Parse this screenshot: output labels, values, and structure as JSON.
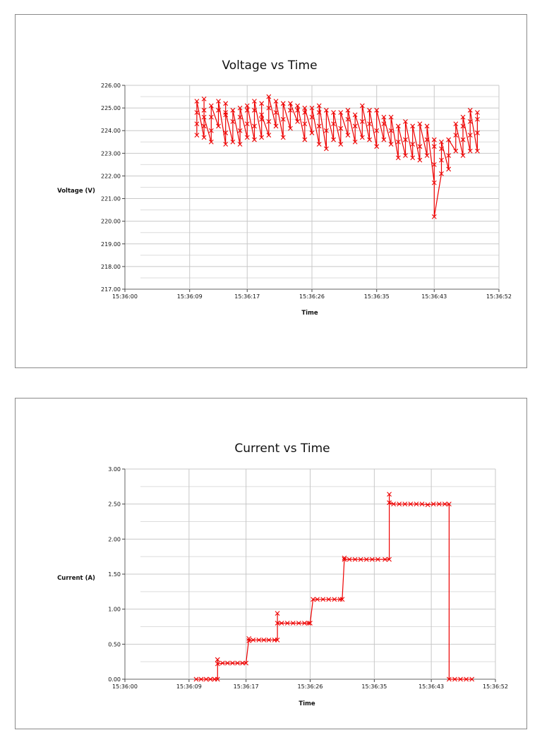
{
  "chart_data": [
    {
      "type": "line",
      "title": "Voltage vs Time",
      "xlabel": "Time",
      "ylabel": "Voltage (V)",
      "ylim": [
        217,
        226
      ],
      "xlim": [
        "15:36:00",
        "15:36:52"
      ],
      "x_ticks": [
        "15:36:00",
        "15:36:09",
        "15:36:17",
        "15:36:26",
        "15:36:35",
        "15:36:43",
        "15:36:52"
      ],
      "y_ticks": [
        "217.00",
        "218.00",
        "219.00",
        "220.00",
        "221.00",
        "222.00",
        "223.00",
        "224.00",
        "225.00",
        "226.00"
      ],
      "grid": true,
      "marker": "x",
      "color": "#ee0000",
      "series": [
        {
          "values": [
            [
              "15:36:10",
              223.8
            ],
            [
              "15:36:10",
              224.3
            ],
            [
              "15:36:10",
              224.8
            ],
            [
              "15:36:10",
              225.3
            ],
            [
              "15:36:11",
              223.7
            ],
            [
              "15:36:11",
              224.2
            ],
            [
              "15:36:11",
              224.9
            ],
            [
              "15:36:11",
              225.4
            ],
            [
              "15:36:11",
              224.6
            ],
            [
              "15:36:12",
              223.5
            ],
            [
              "15:36:12",
              224.0
            ],
            [
              "15:36:12",
              224.6
            ],
            [
              "15:36:12",
              225.1
            ],
            [
              "15:36:13",
              224.2
            ],
            [
              "15:36:13",
              224.9
            ],
            [
              "15:36:13",
              225.3
            ],
            [
              "15:36:14",
              223.4
            ],
            [
              "15:36:14",
              223.9
            ],
            [
              "15:36:14",
              224.7
            ],
            [
              "15:36:14",
              225.2
            ],
            [
              "15:36:14",
              224.8
            ],
            [
              "15:36:15",
              223.5
            ],
            [
              "15:36:15",
              224.4
            ],
            [
              "15:36:15",
              224.9
            ],
            [
              "15:36:16",
              223.4
            ],
            [
              "15:36:16",
              224.0
            ],
            [
              "15:36:16",
              224.6
            ],
            [
              "15:36:16",
              225.0
            ],
            [
              "15:36:17",
              223.7
            ],
            [
              "15:36:17",
              224.3
            ],
            [
              "15:36:17",
              224.9
            ],
            [
              "15:36:17",
              225.1
            ],
            [
              "15:36:18",
              223.6
            ],
            [
              "15:36:18",
              224.2
            ],
            [
              "15:36:18",
              224.9
            ],
            [
              "15:36:18",
              225.3
            ],
            [
              "15:36:19",
              223.7
            ],
            [
              "15:36:19",
              224.5
            ],
            [
              "15:36:19",
              225.2
            ],
            [
              "15:36:19",
              224.7
            ],
            [
              "15:36:20",
              223.8
            ],
            [
              "15:36:20",
              224.4
            ],
            [
              "15:36:20",
              225.0
            ],
            [
              "15:36:20",
              225.5
            ],
            [
              "15:36:21",
              224.2
            ],
            [
              "15:36:21",
              224.8
            ],
            [
              "15:36:21",
              225.3
            ],
            [
              "15:36:22",
              223.7
            ],
            [
              "15:36:22",
              224.5
            ],
            [
              "15:36:22",
              225.2
            ],
            [
              "15:36:23",
              224.1
            ],
            [
              "15:36:23",
              224.9
            ],
            [
              "15:36:23",
              225.2
            ],
            [
              "15:36:24",
              224.4
            ],
            [
              "15:36:24",
              224.9
            ],
            [
              "15:36:24",
              225.1
            ],
            [
              "15:36:25",
              223.6
            ],
            [
              "15:36:25",
              224.3
            ],
            [
              "15:36:25",
              224.8
            ],
            [
              "15:36:25",
              225.0
            ],
            [
              "15:36:26",
              223.9
            ],
            [
              "15:36:26",
              224.6
            ],
            [
              "15:36:26",
              225.0
            ],
            [
              "15:36:27",
              223.4
            ],
            [
              "15:36:27",
              224.2
            ],
            [
              "15:36:27",
              224.8
            ],
            [
              "15:36:27",
              225.1
            ],
            [
              "15:36:28",
              223.2
            ],
            [
              "15:36:28",
              224.0
            ],
            [
              "15:36:28",
              224.9
            ],
            [
              "15:36:29",
              223.6
            ],
            [
              "15:36:29",
              224.3
            ],
            [
              "15:36:29",
              224.8
            ],
            [
              "15:36:30",
              223.4
            ],
            [
              "15:36:30",
              224.1
            ],
            [
              "15:36:30",
              224.8
            ],
            [
              "15:36:31",
              223.8
            ],
            [
              "15:36:31",
              224.5
            ],
            [
              "15:36:31",
              224.9
            ],
            [
              "15:36:32",
              223.5
            ],
            [
              "15:36:32",
              224.2
            ],
            [
              "15:36:32",
              224.7
            ],
            [
              "15:36:33",
              223.7
            ],
            [
              "15:36:33",
              224.4
            ],
            [
              "15:36:33",
              225.1
            ],
            [
              "15:36:34",
              223.6
            ],
            [
              "15:36:34",
              224.3
            ],
            [
              "15:36:34",
              224.9
            ],
            [
              "15:36:35",
              223.3
            ],
            [
              "15:36:35",
              224.0
            ],
            [
              "15:36:35",
              224.9
            ],
            [
              "15:36:36",
              223.6
            ],
            [
              "15:36:36",
              224.3
            ],
            [
              "15:36:36",
              224.6
            ],
            [
              "15:36:37",
              223.4
            ],
            [
              "15:36:37",
              224.0
            ],
            [
              "15:36:37",
              224.6
            ],
            [
              "15:36:38",
              222.8
            ],
            [
              "15:36:38",
              223.5
            ],
            [
              "15:36:38",
              224.2
            ],
            [
              "15:36:39",
              222.9
            ],
            [
              "15:36:39",
              223.6
            ],
            [
              "15:36:39",
              224.4
            ],
            [
              "15:36:40",
              222.8
            ],
            [
              "15:36:40",
              223.4
            ],
            [
              "15:36:40",
              224.2
            ],
            [
              "15:36:41",
              222.7
            ],
            [
              "15:36:41",
              223.3
            ],
            [
              "15:36:41",
              224.3
            ],
            [
              "15:36:42",
              222.9
            ],
            [
              "15:36:42",
              223.6
            ],
            [
              "15:36:42",
              224.2
            ],
            [
              "15:36:43",
              221.7
            ],
            [
              "15:36:43",
              222.5
            ],
            [
              "15:36:43",
              223.3
            ],
            [
              "15:36:43",
              223.6
            ],
            [
              "15:36:43",
              220.2
            ],
            [
              "15:36:44",
              222.1
            ],
            [
              "15:36:44",
              222.7
            ],
            [
              "15:36:44",
              223.2
            ],
            [
              "15:36:44",
              223.5
            ],
            [
              "15:36:45",
              222.3
            ],
            [
              "15:36:45",
              222.9
            ],
            [
              "15:36:45",
              223.6
            ],
            [
              "15:36:46",
              223.1
            ],
            [
              "15:36:46",
              223.8
            ],
            [
              "15:36:46",
              224.3
            ],
            [
              "15:36:47",
              222.9
            ],
            [
              "15:36:47",
              223.6
            ],
            [
              "15:36:47",
              224.2
            ],
            [
              "15:36:47",
              224.6
            ],
            [
              "15:36:48",
              223.1
            ],
            [
              "15:36:48",
              223.8
            ],
            [
              "15:36:48",
              224.4
            ],
            [
              "15:36:48",
              224.9
            ],
            [
              "15:36:49",
              223.1
            ],
            [
              "15:36:49",
              223.9
            ],
            [
              "15:36:49",
              224.5
            ],
            [
              "15:36:49",
              224.8
            ]
          ]
        }
      ]
    },
    {
      "type": "line",
      "title": "Current vs Time",
      "xlabel": "Time",
      "ylabel": "Current (A)",
      "ylim": [
        0,
        3
      ],
      "xlim": [
        "15:36:00",
        "15:36:52"
      ],
      "x_ticks": [
        "15:36:00",
        "15:36:09",
        "15:36:17",
        "15:36:26",
        "15:36:35",
        "15:36:43",
        "15:36:52"
      ],
      "y_ticks": [
        "0.00",
        "0.50",
        "1.00",
        "1.50",
        "2.00",
        "2.50",
        "3.00"
      ],
      "grid": true,
      "marker": "x",
      "color": "#ee0000",
      "series": [
        {
          "values": [
            [
              "15:36:10",
              0.0
            ],
            [
              "15:36:10.7",
              0.0
            ],
            [
              "15:36:11.4",
              0.0
            ],
            [
              "15:36:12",
              0.0
            ],
            [
              "15:36:12.6",
              0.0
            ],
            [
              "15:36:13",
              0.0
            ],
            [
              "15:36:13",
              0.28
            ],
            [
              "15:36:13",
              0.22
            ],
            [
              "15:36:13.7",
              0.23
            ],
            [
              "15:36:14.4",
              0.23
            ],
            [
              "15:36:15.1",
              0.23
            ],
            [
              "15:36:15.8",
              0.23
            ],
            [
              "15:36:16.5",
              0.23
            ],
            [
              "15:36:17",
              0.23
            ],
            [
              "15:36:17.4",
              0.58
            ],
            [
              "15:36:17.4",
              0.55
            ],
            [
              "15:36:18",
              0.56
            ],
            [
              "15:36:18.8",
              0.56
            ],
            [
              "15:36:19.5",
              0.56
            ],
            [
              "15:36:20.2",
              0.56
            ],
            [
              "15:36:21",
              0.56
            ],
            [
              "15:36:21.4",
              0.56
            ],
            [
              "15:36:21.4",
              0.94
            ],
            [
              "15:36:21.4",
              0.8
            ],
            [
              "15:36:22",
              0.8
            ],
            [
              "15:36:22.8",
              0.8
            ],
            [
              "15:36:23.6",
              0.8
            ],
            [
              "15:36:24.4",
              0.8
            ],
            [
              "15:36:25.2",
              0.8
            ],
            [
              "15:36:25.8",
              0.8
            ],
            [
              "15:36:26",
              0.8
            ],
            [
              "15:36:26.4",
              1.14
            ],
            [
              "15:36:27",
              1.14
            ],
            [
              "15:36:27.8",
              1.14
            ],
            [
              "15:36:28.6",
              1.14
            ],
            [
              "15:36:29.4",
              1.14
            ],
            [
              "15:36:30.2",
              1.14
            ],
            [
              "15:36:30.5",
              1.14
            ],
            [
              "15:36:30.8",
              1.73
            ],
            [
              "15:36:30.8",
              1.71
            ],
            [
              "15:36:31.5",
              1.71
            ],
            [
              "15:36:32.3",
              1.71
            ],
            [
              "15:36:33.1",
              1.71
            ],
            [
              "15:36:33.9",
              1.71
            ],
            [
              "15:36:34.7",
              1.71
            ],
            [
              "15:36:35.5",
              1.71
            ],
            [
              "15:36:36.5",
              1.71
            ],
            [
              "15:36:37.1",
              1.71
            ],
            [
              "15:36:37.1",
              2.64
            ],
            [
              "15:36:37.1",
              2.52
            ],
            [
              "15:36:37.7",
              2.5
            ],
            [
              "15:36:38.5",
              2.5
            ],
            [
              "15:36:39.3",
              2.5
            ],
            [
              "15:36:40.1",
              2.5
            ],
            [
              "15:36:40.9",
              2.5
            ],
            [
              "15:36:41.7",
              2.5
            ],
            [
              "15:36:42.5",
              2.49
            ],
            [
              "15:36:43.3",
              2.5
            ],
            [
              "15:36:44.1",
              2.5
            ],
            [
              "15:36:44.9",
              2.5
            ],
            [
              "15:36:45.5",
              2.5
            ],
            [
              "15:36:45.5",
              0.0
            ],
            [
              "15:36:46.3",
              0.0
            ],
            [
              "15:36:47.1",
              0.0
            ],
            [
              "15:36:47.9",
              0.0
            ],
            [
              "15:36:48.7",
              0.0
            ]
          ]
        }
      ]
    }
  ]
}
